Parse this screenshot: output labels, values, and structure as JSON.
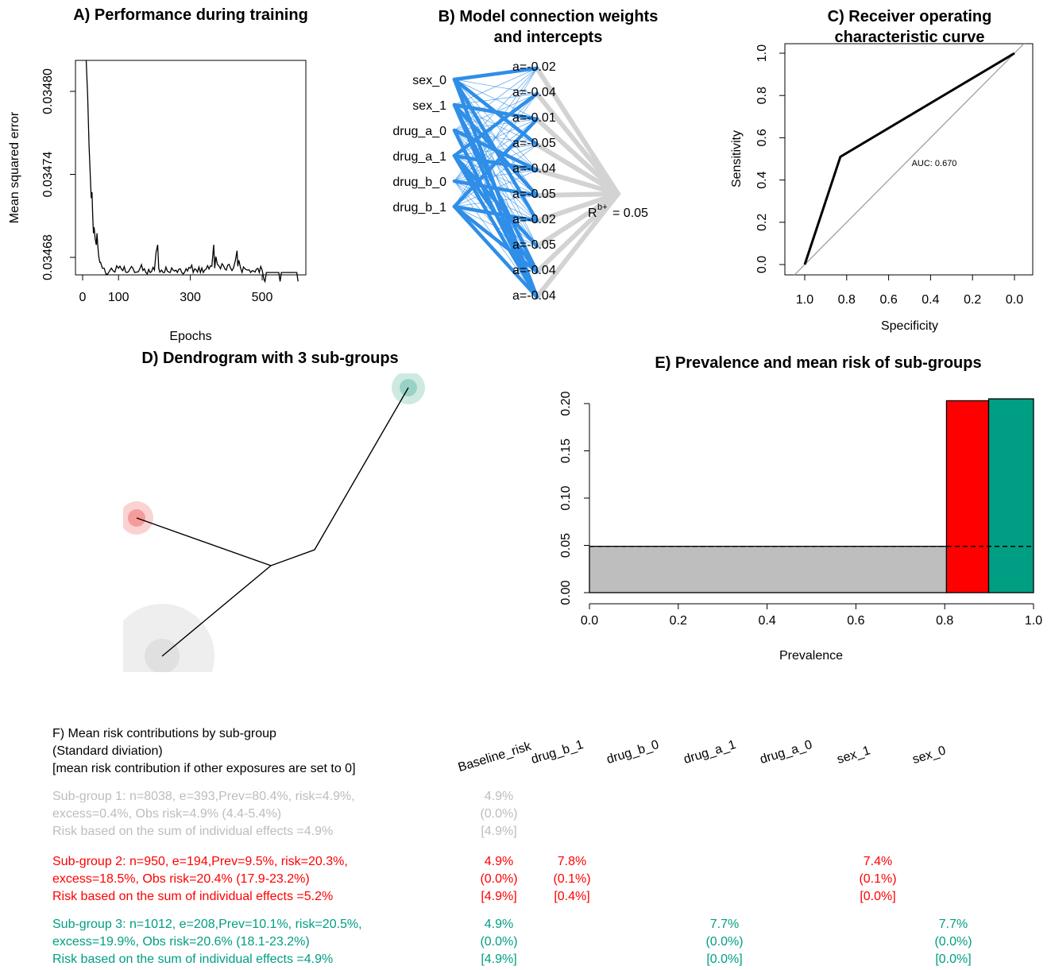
{
  "colors": {
    "group1": "#bdbdbd",
    "group2": "#ff0000",
    "group3": "#009e82",
    "weights": "#2e8ee8",
    "grey_edges": "#d3d3d3"
  },
  "panels": {
    "A": {
      "title": "A) Performance during training"
    },
    "B": {
      "title_line1": "B) Model connection weights",
      "title_line2": "and intercepts"
    },
    "C": {
      "title_line1": "C) Receiver operating",
      "title_line2": "characteristic curve"
    },
    "D": {
      "title": "D) Dendrogram with 3 sub-groups"
    },
    "E": {
      "title": "E) Prevalence and mean risk of sub-groups"
    }
  },
  "chart_data": [
    {
      "id": "A",
      "type": "line",
      "title": "A) Performance during training",
      "xlabel": "Epochs",
      "ylabel": "Mean squared error",
      "xticks": [
        0,
        100,
        300,
        500
      ],
      "yticks": [
        0.03468,
        0.03474,
        0.0348
      ],
      "ytick_labels": [
        "0.03468",
        "0.03474",
        "0.03480"
      ],
      "xlim": [
        0,
        600
      ],
      "ylim": [
        0.034661,
        0.034839
      ],
      "series": [
        {
          "x": [
            10,
            14,
            18,
            22,
            24,
            26,
            28,
            30,
            32,
            35,
            38,
            40,
            42,
            45,
            48,
            50,
            55,
            60,
            65,
            70,
            80,
            90,
            100,
            120,
            140,
            150,
            160,
            180,
            200,
            209,
            212,
            215,
            220,
            240,
            260,
            280,
            300,
            320,
            340,
            360,
            365,
            368,
            371,
            380,
            400,
            420,
            430,
            432,
            435,
            440,
            460,
            480,
            500,
            505,
            508,
            550,
            600
          ],
          "y": [
            0.0348397,
            0.0347975,
            0.0347608,
            0.0347355,
            0.0347229,
            0.0347271,
            0.0347102,
            0.0346975,
            0.0347018,
            0.0346934,
            0.0346891,
            0.0346975,
            0.0346891,
            0.0346806,
            0.0346764,
            0.0346764,
            0.0346722,
            0.0346722,
            0.034668,
            0.034668,
            0.0346722,
            0.0346694,
            0.0346722,
            0.0346694,
            0.0346722,
            0.0346694,
            0.0346722,
            0.034668,
            0.0346708,
            0.0346891,
            0.0346722,
            0.0346694,
            0.0346708,
            0.0346694,
            0.0346708,
            0.034668,
            0.0346722,
            0.0346694,
            0.0346708,
            0.0346736,
            0.0346891,
            0.0346722,
            0.0346806,
            0.0346736,
            0.0346708,
            0.0346722,
            0.0346848,
            0.0346736,
            0.034678,
            0.0346722,
            0.0346708,
            0.0346694,
            0.0346708,
            0.034664,
            0.0346626,
            0.0346626,
            0.0346626
          ]
        }
      ]
    },
    {
      "id": "B",
      "type": "network",
      "inputs": [
        "sex_0",
        "sex_1",
        "drug_a_0",
        "drug_a_1",
        "drug_b_0",
        "drug_b_1"
      ],
      "hidden_intercepts": [
        "a=-0.02",
        "a=-0.04",
        "a=-0.01",
        "a=-0.05",
        "a=-0.04",
        "a=-0.05",
        "a=-0.02",
        "a=-0.05",
        "a=-0.04",
        "a=-0.04"
      ],
      "output_label": "R",
      "output_superscript": "b+",
      "output_value": "= 0.05"
    },
    {
      "id": "C",
      "type": "line",
      "title": "C) Receiver operating characteristic curve",
      "xlabel": "Specificity",
      "ylabel": "Sensitivity",
      "xlim": [
        1.0,
        0.0
      ],
      "ylim": [
        0.0,
        1.0
      ],
      "xticks": [
        1.0,
        0.8,
        0.6,
        0.4,
        0.2,
        0.0
      ],
      "xtick_labels": [
        "1.0",
        "0.8",
        "0.6",
        "0.4",
        "0.2",
        "0.0"
      ],
      "yticks": [
        0.0,
        0.2,
        0.4,
        0.6,
        0.8,
        1.0
      ],
      "ytick_labels": [
        "0.0",
        "0.2",
        "0.4",
        "0.6",
        "0.8",
        "1.0"
      ],
      "series": [
        {
          "x": [
            1.0,
            0.83,
            0.0
          ],
          "y": [
            0.0,
            0.51,
            1.0
          ]
        }
      ],
      "annotation": "AUC: 0.670"
    },
    {
      "id": "D",
      "type": "dendrogram",
      "title": "D) Dendrogram with 3 sub-groups",
      "groups": [
        {
          "group": 1,
          "prevalence": 0.804,
          "color": "#bdbdbd"
        },
        {
          "group": 2,
          "prevalence": 0.095,
          "color": "#ff0000"
        },
        {
          "group": 3,
          "prevalence": 0.101,
          "color": "#009e82"
        }
      ]
    },
    {
      "id": "E",
      "type": "bar",
      "title": "E) Prevalence and mean risk of sub-groups",
      "xlabel": "Prevalence",
      "ylabel": "",
      "xlim": [
        0,
        1
      ],
      "ylim": [
        0,
        0.225
      ],
      "xticks": [
        0.0,
        0.2,
        0.4,
        0.6,
        0.8,
        1.0
      ],
      "xtick_labels": [
        "0.0",
        "0.2",
        "0.4",
        "0.6",
        "0.8",
        "1.0"
      ],
      "yticks": [
        0.0,
        0.05,
        0.1,
        0.15,
        0.2
      ],
      "ytick_labels": [
        "0.00",
        "0.05",
        "0.10",
        "0.15",
        "0.20"
      ],
      "bars": [
        {
          "start": 0.0,
          "end": 0.804,
          "risk": 0.049,
          "color": "#bebebe"
        },
        {
          "start": 0.804,
          "end": 0.899,
          "risk": 0.203,
          "color": "#ff0000"
        },
        {
          "start": 0.899,
          "end": 1.0,
          "risk": 0.205,
          "color": "#009e82"
        }
      ],
      "reference_line": 0.049
    }
  ],
  "panelF": {
    "title_line1": "F) Mean risk contributions by sub-group",
    "title_line2": "(Standard diviation)",
    "title_line3": "[mean risk contribution if other exposures are set to 0]",
    "columns": [
      "Baseline_risk",
      "drug_b_1",
      "drug_b_0",
      "drug_a_1",
      "drug_a_0",
      "sex_1",
      "sex_0"
    ],
    "groups": [
      {
        "line1": "Sub-group 1: n=8038, e=393,Prev=80.4%, risk=4.9%,",
        "line2": "excess=0.4%, Obs risk=4.9% (4.4-5.4%)",
        "line3": "Risk based on the sum of individual effects =4.9%",
        "cells": [
          {
            "col": 0,
            "mean": "4.9%",
            "sd": "(0.0%)",
            "solo": "[4.9%]"
          }
        ]
      },
      {
        "line1": "Sub-group 2: n=950, e=194,Prev=9.5%, risk=20.3%,",
        "line2": "excess=18.5%, Obs risk=20.4% (17.9-23.2%)",
        "line3": "Risk based on the sum of individual effects =5.2%",
        "cells": [
          {
            "col": 0,
            "mean": "4.9%",
            "sd": "(0.0%)",
            "solo": "[4.9%]"
          },
          {
            "col": 1,
            "mean": "7.8%",
            "sd": "(0.1%)",
            "solo": "[0.4%]"
          },
          {
            "col": 5,
            "mean": "7.4%",
            "sd": "(0.1%)",
            "solo": "[0.0%]"
          }
        ]
      },
      {
        "line1": "Sub-group 3: n=1012, e=208,Prev=10.1%, risk=20.5%,",
        "line2": "excess=19.9%, Obs risk=20.6% (18.1-23.2%)",
        "line3": "Risk based on the sum of individual effects =4.9%",
        "cells": [
          {
            "col": 0,
            "mean": "4.9%",
            "sd": "(0.0%)",
            "solo": "[4.9%]"
          },
          {
            "col": 3,
            "mean": "7.7%",
            "sd": "(0.0%)",
            "solo": "[0.0%]"
          },
          {
            "col": 6,
            "mean": "7.7%",
            "sd": "(0.0%)",
            "solo": "[0.0%]"
          }
        ]
      }
    ]
  }
}
